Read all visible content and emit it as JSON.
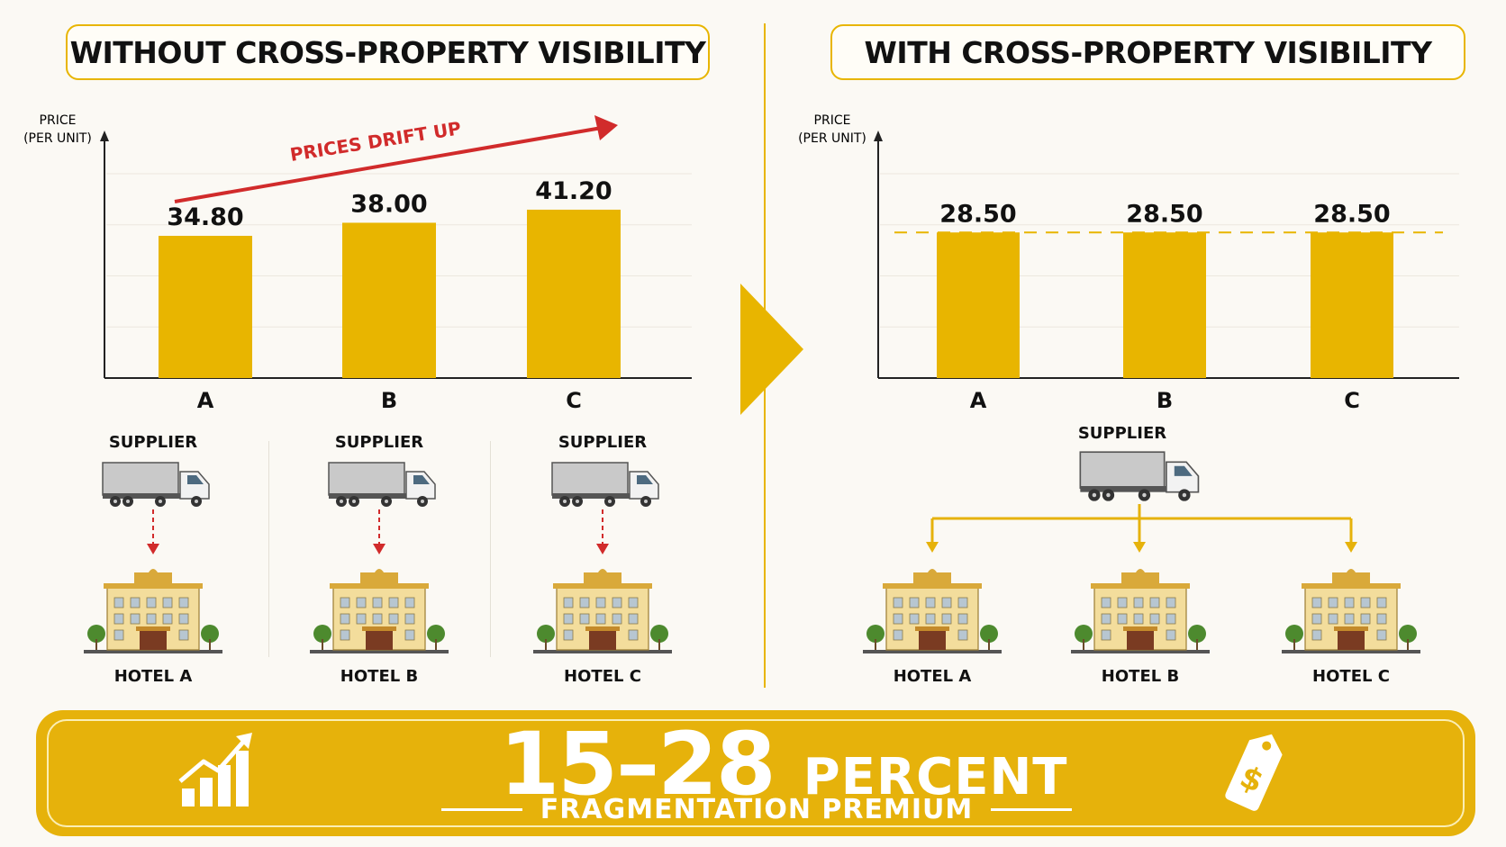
{
  "titles": {
    "left": "WITHOUT CROSS-PROPERTY VISIBILITY",
    "right": "WITH CROSS-PROPERTY VISIBILITY"
  },
  "chart_data": [
    {
      "type": "bar",
      "title": "WITHOUT CROSS-PROPERTY VISIBILITY",
      "ylabel": "PRICE (PER UNIT)",
      "categories": [
        "A",
        "B",
        "C"
      ],
      "values": [
        34.8,
        38.0,
        41.2
      ],
      "value_labels": [
        "34.80",
        "38.00",
        "41.20"
      ],
      "ylim": [
        0,
        50
      ],
      "grid": true,
      "bar_color": "#e8b500",
      "annotation": {
        "text": "PRICES DRIFT UP",
        "color": "#d12b2b"
      }
    },
    {
      "type": "bar",
      "title": "WITH CROSS-PROPERTY VISIBILITY",
      "ylabel": "PRICE (PER UNIT)",
      "categories": [
        "A",
        "B",
        "C"
      ],
      "values": [
        28.5,
        28.5,
        28.5
      ],
      "value_labels": [
        "28.50",
        "28.50",
        "28.50"
      ],
      "ylim": [
        0,
        40
      ],
      "grid": true,
      "bar_color": "#e8b500",
      "reference_line": 28.5
    }
  ],
  "left_scenario": {
    "supplier_label": "SUPPLIER",
    "hotels": [
      "HOTEL A",
      "HOTEL B",
      "HOTEL C"
    ]
  },
  "right_scenario": {
    "supplier_label": "SUPPLIER",
    "hotels": [
      "HOTEL A",
      "HOTEL B",
      "HOTEL C"
    ]
  },
  "hotel_sign": "HOTEL",
  "banner": {
    "number": "15–28",
    "word": "PERCENT",
    "subtitle": "FRAGMENTATION PREMIUM",
    "color": "#e6b20b",
    "icons": [
      "growth-chart-icon",
      "price-tag-icon"
    ],
    "tag_symbol": "$"
  },
  "colors": {
    "accent": "#e8b500",
    "drift": "#d12b2b",
    "link": "#e6b20b"
  }
}
